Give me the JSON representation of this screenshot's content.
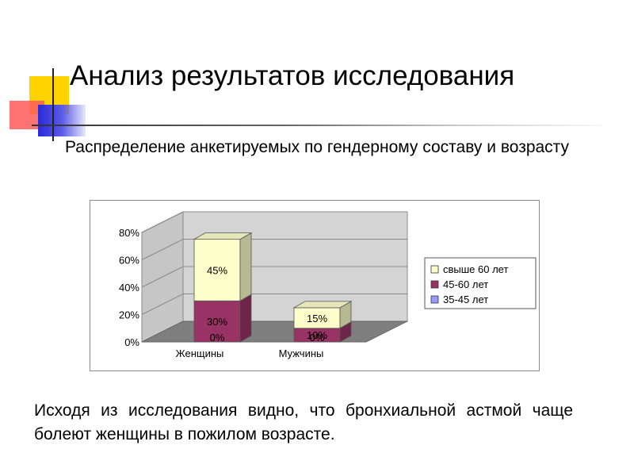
{
  "slide": {
    "title": "Анализ результатов исследования",
    "subtitle": "Распределение анкетируемых по гендерному составу и возрасту",
    "conclusion": "Исходя из исследования видно, что бронхиальной астмой чаще болеют женщины в пожилом возрасте."
  },
  "colors": {
    "accent_yellow": "#ffd200",
    "accent_red": "#ff5a5a",
    "accent_blue": "#2a2ad8"
  },
  "chart_data": {
    "type": "bar",
    "stacked": true,
    "three_d": true,
    "categories": [
      "Женщины",
      "Мужчины"
    ],
    "series": [
      {
        "name": "35-45 лет",
        "values": [
          0,
          0
        ],
        "labels": [
          "0%",
          "0%"
        ],
        "color": "#9999ff"
      },
      {
        "name": "45-60 лет",
        "values": [
          30,
          10
        ],
        "labels": [
          "30%",
          "10%"
        ],
        "color": "#993366"
      },
      {
        "name": "свыше 60 лет",
        "values": [
          45,
          15
        ],
        "labels": [
          "45%",
          "15%"
        ],
        "color": "#ffffcc"
      }
    ],
    "yticks": [
      "0%",
      "20%",
      "40%",
      "60%",
      "80%"
    ],
    "ylim": [
      0,
      80
    ],
    "grid": true,
    "legend_position": "right"
  }
}
